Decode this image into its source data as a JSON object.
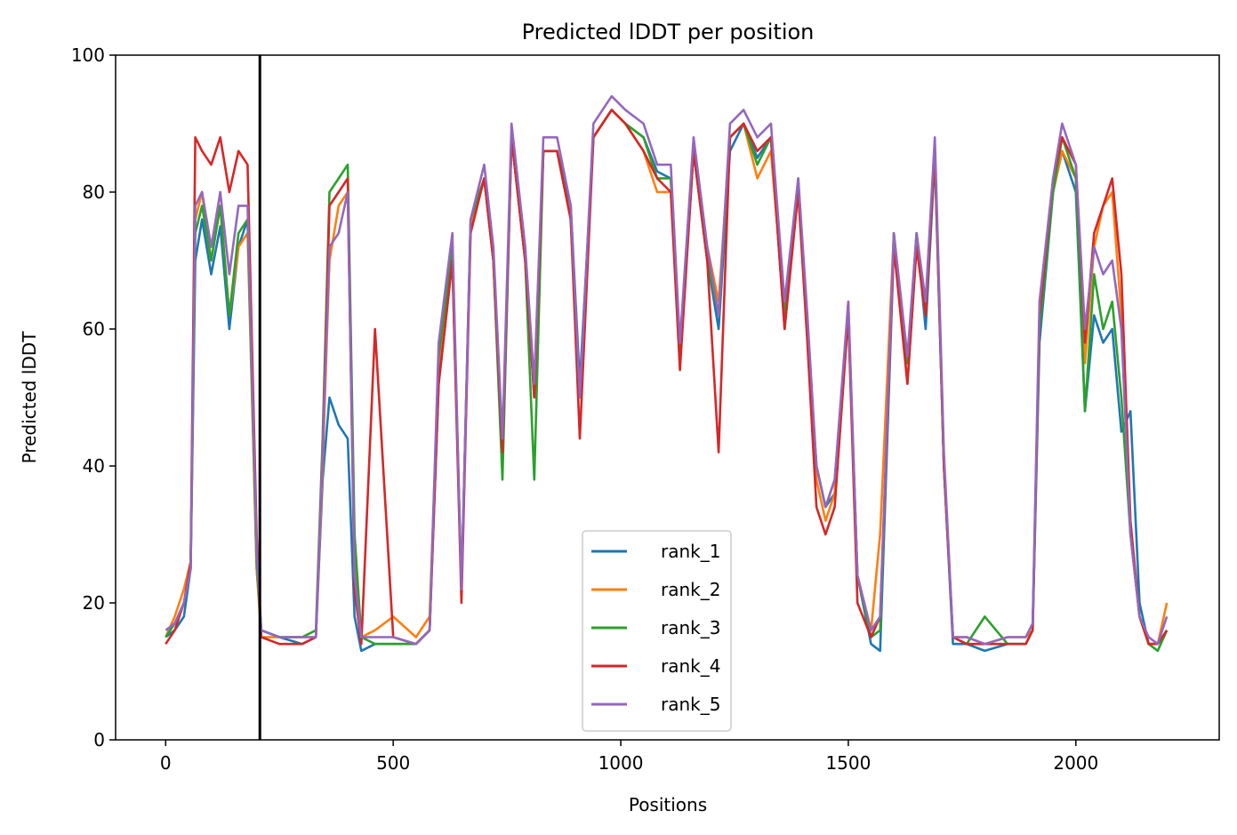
{
  "chart_data": {
    "type": "line",
    "title": "Predicted lDDT per position",
    "xlabel": "Positions",
    "ylabel": "Predicted lDDT",
    "xlim": [
      -110,
      2315
    ],
    "ylim": [
      0,
      100
    ],
    "xticks": [
      0,
      500,
      1000,
      1500,
      2000
    ],
    "yticks": [
      0,
      20,
      40,
      60,
      80,
      100
    ],
    "xtick_labels": [
      "0",
      "500",
      "1000",
      "1500",
      "2000"
    ],
    "ytick_labels": [
      "0",
      "20",
      "40",
      "60",
      "80",
      "100"
    ],
    "grid": false,
    "legend_position": "lower-center",
    "vertical_line_x": 207,
    "colors": {
      "rank_1": "#1f77b4",
      "rank_2": "#ff7f0e",
      "rank_3": "#2ca02c",
      "rank_4": "#d62728",
      "rank_5": "#9467bd",
      "vline": "#000000"
    },
    "x": [
      0,
      20,
      40,
      55,
      65,
      80,
      100,
      120,
      140,
      160,
      180,
      200,
      210,
      250,
      300,
      330,
      345,
      360,
      380,
      400,
      415,
      430,
      460,
      500,
      550,
      580,
      600,
      630,
      650,
      670,
      700,
      720,
      740,
      760,
      790,
      810,
      830,
      860,
      890,
      910,
      940,
      980,
      1010,
      1050,
      1080,
      1110,
      1130,
      1160,
      1190,
      1215,
      1240,
      1270,
      1300,
      1330,
      1360,
      1390,
      1410,
      1430,
      1450,
      1470,
      1500,
      1520,
      1550,
      1570,
      1600,
      1630,
      1650,
      1670,
      1690,
      1710,
      1730,
      1760,
      1800,
      1850,
      1890,
      1905,
      1920,
      1950,
      1970,
      2000,
      2020,
      2040,
      2060,
      2080,
      2100,
      2120,
      2140,
      2160,
      2180,
      2200
    ],
    "series": [
      {
        "name": "rank_1",
        "values": [
          15,
          16,
          18,
          25,
          70,
          76,
          68,
          75,
          60,
          72,
          76,
          25,
          16,
          15,
          14,
          15,
          38,
          50,
          46,
          44,
          18,
          13,
          14,
          14,
          14,
          16,
          52,
          70,
          22,
          75,
          82,
          70,
          42,
          88,
          70,
          50,
          86,
          86,
          78,
          52,
          88,
          92,
          90,
          88,
          83,
          82,
          55,
          86,
          70,
          60,
          86,
          90,
          85,
          88,
          60,
          82,
          60,
          40,
          34,
          36,
          62,
          24,
          14,
          13,
          72,
          55,
          74,
          60,
          85,
          40,
          14,
          14,
          13,
          14,
          14,
          16,
          58,
          80,
          86,
          80,
          48,
          62,
          58,
          60,
          45,
          48,
          20,
          14,
          14,
          16
        ]
      },
      {
        "name": "rank_2",
        "values": [
          15,
          18,
          22,
          26,
          76,
          80,
          70,
          78,
          62,
          72,
          74,
          25,
          15,
          15,
          15,
          15,
          40,
          70,
          78,
          80,
          25,
          15,
          16,
          18,
          15,
          18,
          55,
          70,
          22,
          75,
          82,
          70,
          40,
          88,
          70,
          52,
          86,
          86,
          76,
          50,
          88,
          92,
          90,
          86,
          80,
          80,
          58,
          86,
          72,
          64,
          88,
          90,
          82,
          86,
          62,
          80,
          60,
          38,
          32,
          36,
          64,
          24,
          16,
          30,
          74,
          52,
          72,
          62,
          86,
          40,
          15,
          15,
          14,
          15,
          15,
          16,
          62,
          80,
          86,
          82,
          55,
          72,
          78,
          80,
          62,
          30,
          18,
          14,
          14,
          20
        ]
      },
      {
        "name": "rank_3",
        "values": [
          15,
          17,
          20,
          25,
          74,
          78,
          70,
          78,
          62,
          74,
          76,
          26,
          16,
          15,
          15,
          16,
          44,
          80,
          82,
          84,
          30,
          15,
          14,
          14,
          14,
          16,
          56,
          72,
          22,
          76,
          82,
          70,
          38,
          88,
          70,
          38,
          86,
          86,
          76,
          50,
          88,
          92,
          90,
          88,
          82,
          82,
          56,
          86,
          70,
          62,
          88,
          90,
          84,
          88,
          62,
          80,
          60,
          40,
          34,
          38,
          62,
          24,
          15,
          16,
          74,
          55,
          74,
          62,
          86,
          40,
          15,
          14,
          18,
          14,
          14,
          16,
          60,
          80,
          88,
          82,
          48,
          68,
          60,
          64,
          50,
          30,
          18,
          14,
          13,
          16
        ]
      },
      {
        "name": "rank_4",
        "values": [
          14,
          16,
          20,
          26,
          88,
          86,
          84,
          88,
          80,
          86,
          84,
          30,
          15,
          14,
          14,
          15,
          42,
          78,
          80,
          82,
          22,
          14,
          60,
          15,
          14,
          16,
          52,
          70,
          20,
          74,
          82,
          70,
          42,
          88,
          70,
          50,
          86,
          86,
          76,
          44,
          88,
          92,
          90,
          86,
          82,
          80,
          54,
          86,
          70,
          42,
          88,
          90,
          86,
          88,
          60,
          80,
          58,
          34,
          30,
          34,
          62,
          20,
          15,
          18,
          72,
          52,
          72,
          62,
          86,
          40,
          15,
          14,
          14,
          14,
          14,
          16,
          62,
          82,
          88,
          84,
          58,
          74,
          78,
          82,
          68,
          32,
          18,
          14,
          14,
          16
        ]
      },
      {
        "name": "rank_5",
        "values": [
          16,
          17,
          20,
          25,
          78,
          80,
          72,
          80,
          68,
          78,
          78,
          28,
          16,
          15,
          15,
          15,
          42,
          72,
          74,
          80,
          24,
          15,
          15,
          15,
          14,
          16,
          58,
          74,
          22,
          76,
          84,
          72,
          44,
          90,
          72,
          52,
          88,
          88,
          78,
          50,
          90,
          94,
          92,
          90,
          84,
          84,
          58,
          88,
          72,
          62,
          90,
          92,
          88,
          90,
          64,
          82,
          62,
          40,
          34,
          38,
          64,
          24,
          16,
          18,
          74,
          56,
          74,
          64,
          88,
          42,
          15,
          15,
          14,
          15,
          15,
          17,
          64,
          82,
          90,
          84,
          60,
          72,
          68,
          70,
          60,
          30,
          18,
          15,
          14,
          18
        ]
      }
    ]
  }
}
